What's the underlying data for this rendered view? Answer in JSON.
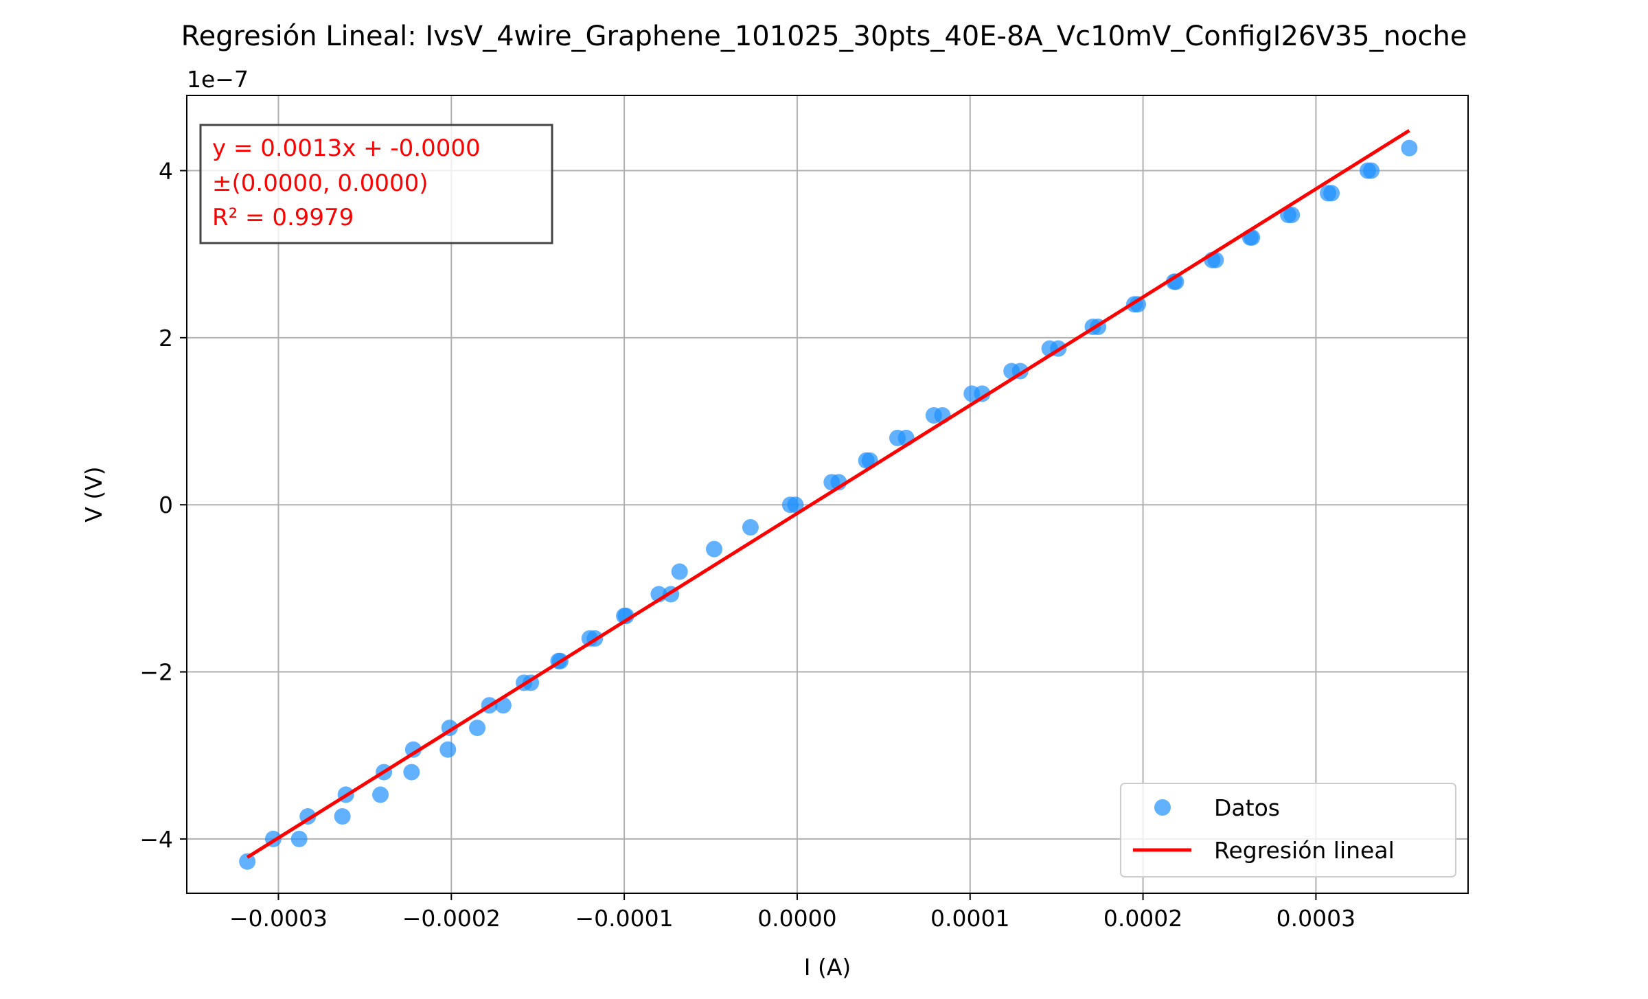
{
  "chart_data": {
    "type": "scatter",
    "title": "Regresión Lineal: IvsV_4wire_Graphene_101025_30pts_40E-8A_Vc10mV_ConfigI26V35_noche",
    "xlabel": "I (A)",
    "ylabel": "V (V)",
    "y_offset_label": "1e−7",
    "y_scale": 1e-07,
    "xlim": [
      -0.000353,
      0.000388
    ],
    "ylim": [
      -4.65,
      4.9
    ],
    "xticks": [
      -0.0003,
      -0.0002,
      -0.0001,
      0.0,
      0.0001,
      0.0002,
      0.0003
    ],
    "xtick_labels": [
      "−0.0003",
      "−0.0002",
      "−0.0001",
      "0.0000",
      "0.0001",
      "0.0002",
      "0.0003"
    ],
    "yticks": [
      -4,
      -2,
      0,
      2,
      4
    ],
    "ytick_labels": [
      "−4",
      "−2",
      "0",
      "2",
      "4"
    ],
    "grid": true,
    "legend_position": "lower-right",
    "annotation": [
      "y = 0.0013x + -0.0000",
      "±(0.0000, 0.0000)",
      "R² = 0.9979"
    ],
    "series": [
      {
        "name": "Datos",
        "kind": "scatter",
        "color": "#1e90ff",
        "x": [
          -0.000318,
          -0.000303,
          -0.000288,
          -0.000283,
          -0.000263,
          -0.000261,
          -0.000241,
          -0.000239,
          -0.000223,
          -0.000222,
          -0.000202,
          -0.000201,
          -0.000185,
          -0.000178,
          -0.00017,
          -0.000158,
          -0.000154,
          -0.000138,
          -0.000137,
          -0.00012,
          -0.000117,
          -0.0001,
          -9.9e-05,
          -8e-05,
          -7.3e-05,
          -6.8e-05,
          -4.8e-05,
          -2.7e-05,
          -4e-06,
          -1e-06,
          2e-05,
          2.4e-05,
          4e-05,
          4.2e-05,
          5.8e-05,
          6.3e-05,
          7.9e-05,
          8.4e-05,
          0.000101,
          0.000107,
          0.000124,
          0.000129,
          0.000146,
          0.000151,
          0.000171,
          0.000174,
          0.000195,
          0.000197,
          0.000218,
          0.000219,
          0.00024,
          0.000242,
          0.000262,
          0.000263,
          0.000284,
          0.000286,
          0.000307,
          0.000309,
          0.00033,
          0.000332,
          0.000354
        ],
        "y": [
          -4.27,
          -4.0,
          -4.0,
          -3.73,
          -3.73,
          -3.47,
          -3.47,
          -3.2,
          -3.2,
          -2.93,
          -2.93,
          -2.67,
          -2.67,
          -2.4,
          -2.4,
          -2.13,
          -2.13,
          -1.87,
          -1.87,
          -1.6,
          -1.6,
          -1.33,
          -1.33,
          -1.07,
          -1.07,
          -0.8,
          -0.53,
          -0.27,
          0.0,
          0.0,
          0.27,
          0.27,
          0.53,
          0.53,
          0.8,
          0.8,
          1.07,
          1.07,
          1.33,
          1.33,
          1.6,
          1.6,
          1.87,
          1.87,
          2.13,
          2.13,
          2.4,
          2.4,
          2.67,
          2.67,
          2.93,
          2.93,
          3.2,
          3.2,
          3.47,
          3.47,
          3.73,
          3.73,
          4.0,
          4.0,
          4.27
        ]
      },
      {
        "name": "Regresión lineal",
        "kind": "line",
        "color": "#ff0000",
        "x": [
          -0.000318,
          0.000354
        ],
        "y": [
          -4.22,
          4.48
        ]
      }
    ]
  }
}
